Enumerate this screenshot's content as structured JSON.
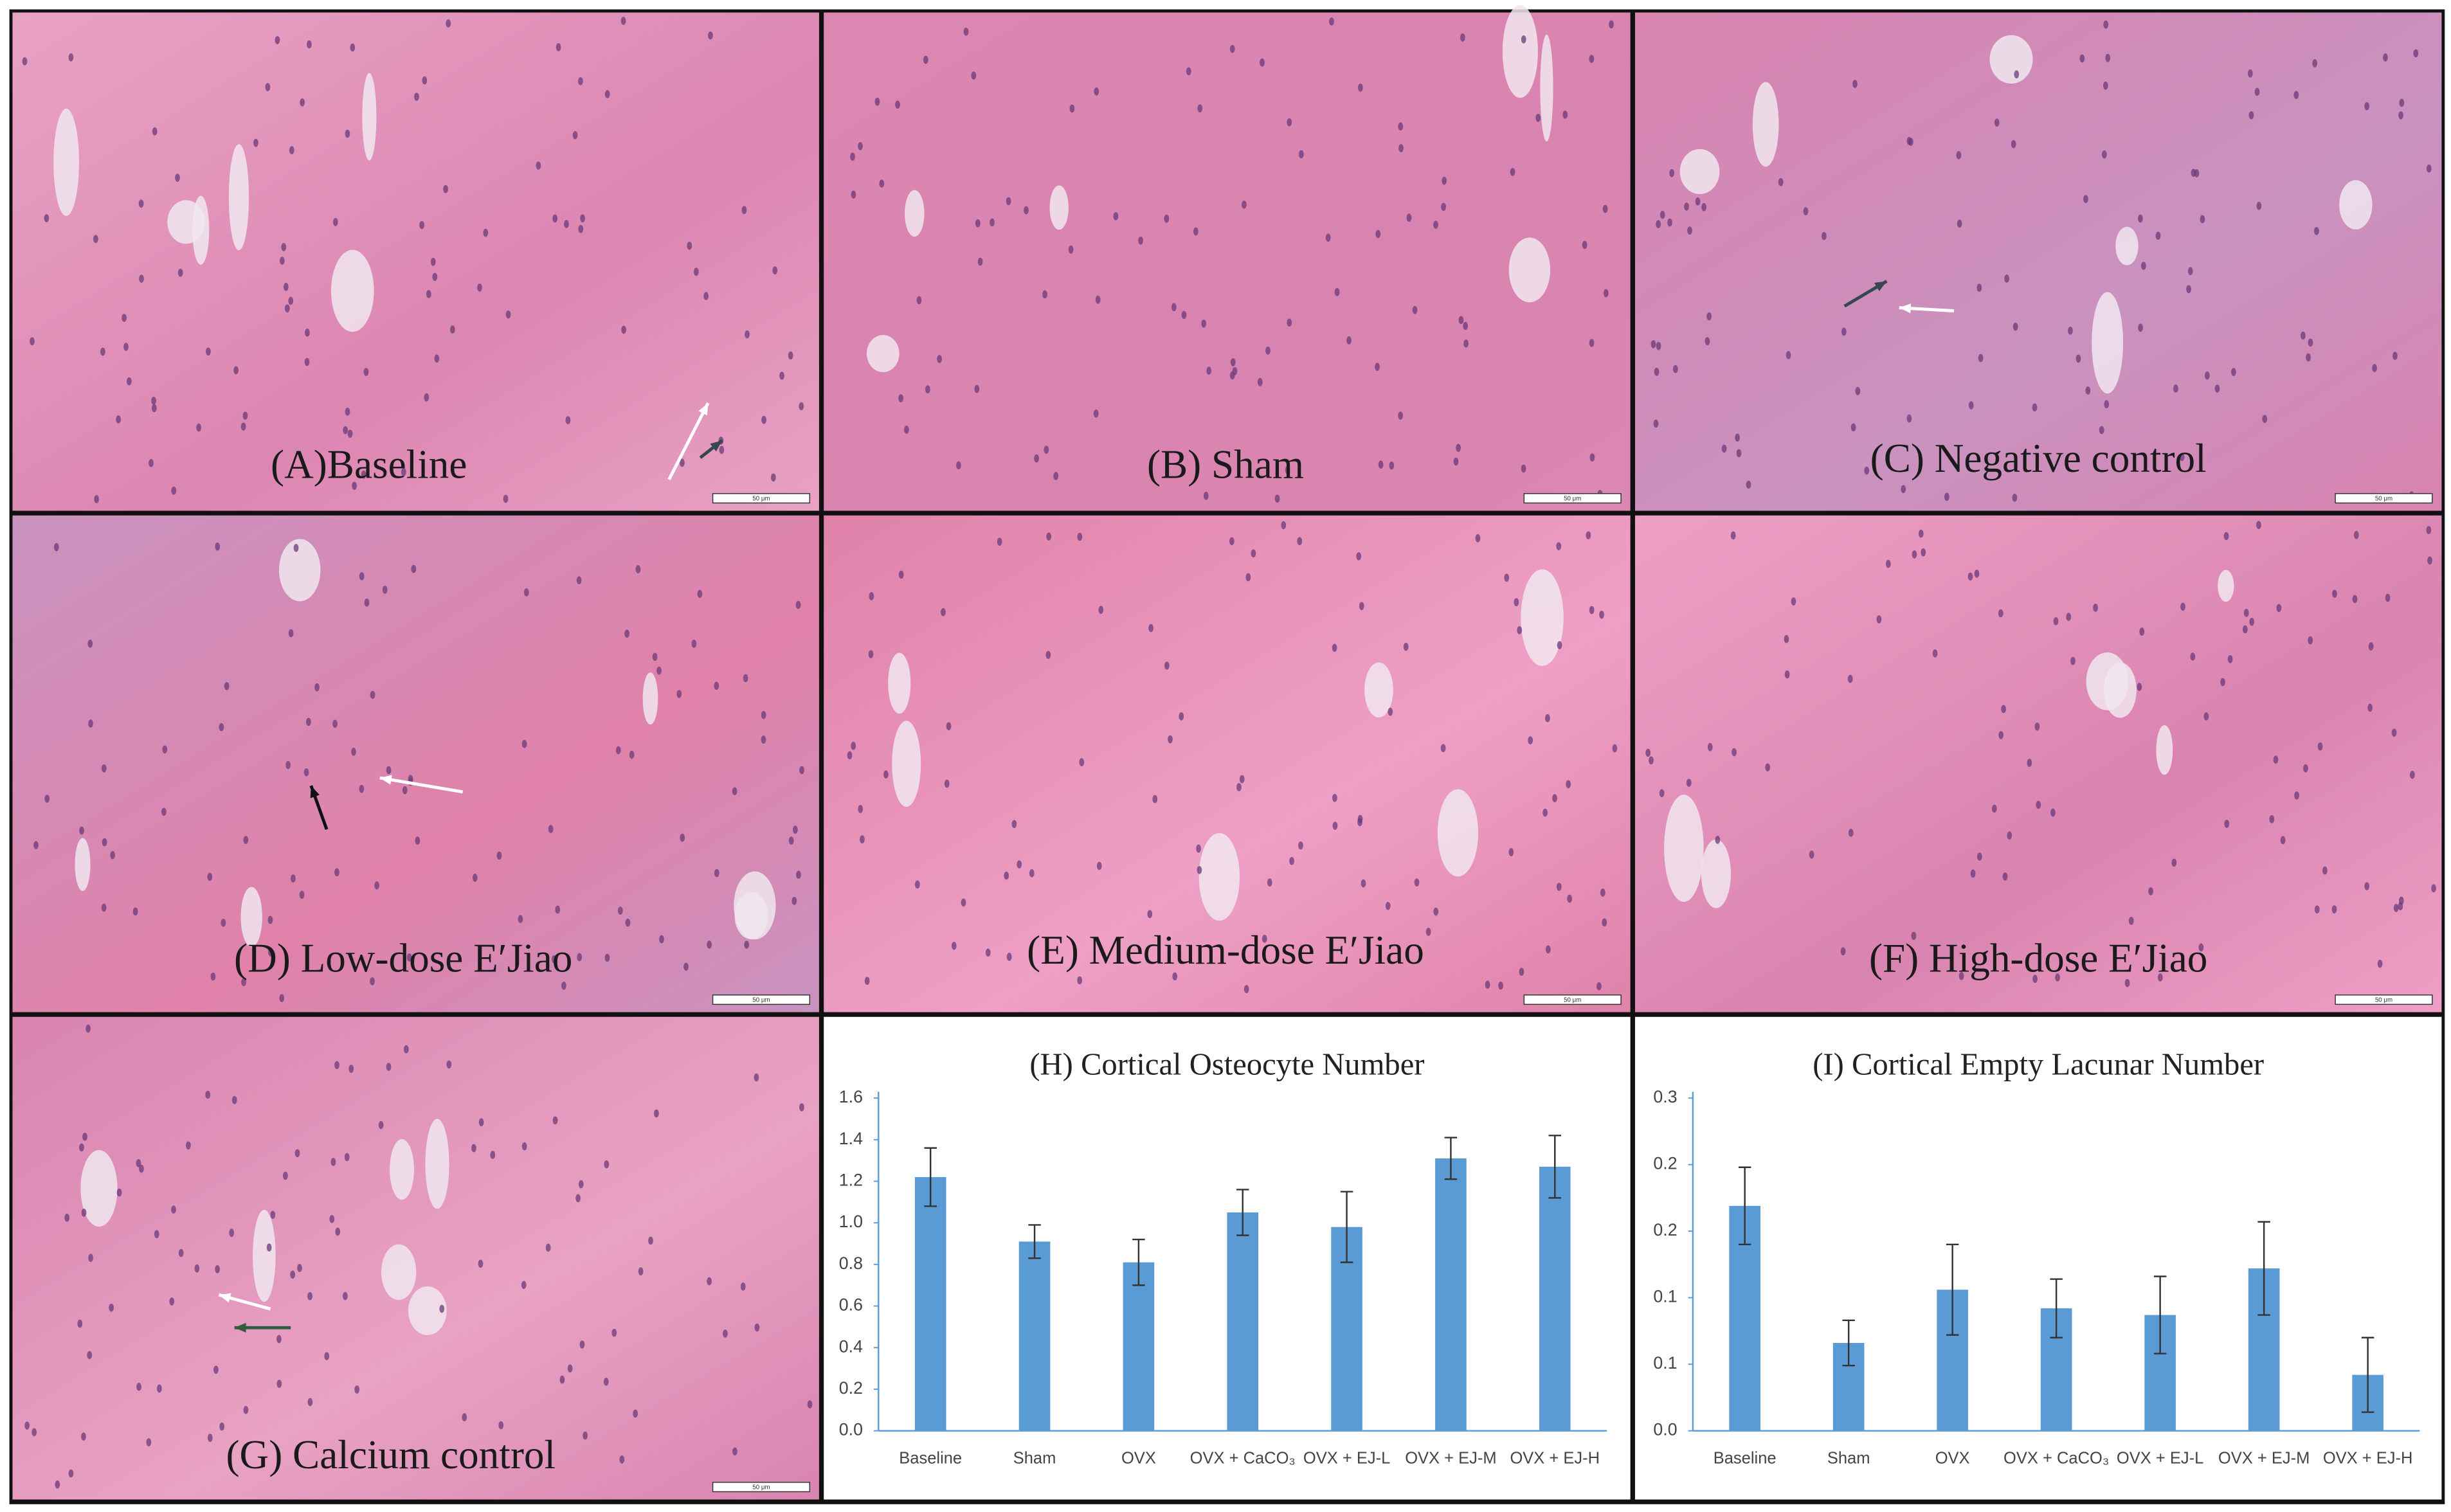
{
  "panels": [
    {
      "label": "(A)Baseline"
    },
    {
      "label": "(B) Sham"
    },
    {
      "label": "(C) Negative control"
    },
    {
      "label": "(D) Low-dose E′Jiao"
    },
    {
      "label": "(E) Medium-dose E′Jiao"
    },
    {
      "label": "(F) High-dose E′Jiao"
    },
    {
      "label": "(G) Calcium control"
    }
  ],
  "scale_bar": "50 μm",
  "chart_data": [
    {
      "type": "bar",
      "title": "(H) Cortical Osteocyte Number",
      "categories": [
        "Baseline",
        "Sham",
        "OVX",
        "OVX + CaCO₃",
        "OVX + EJ-L",
        "OVX + EJ-M",
        "OVX + EJ-H"
      ],
      "values": [
        1.22,
        0.91,
        0.81,
        1.05,
        0.98,
        1.31,
        1.27
      ],
      "errors": [
        0.14,
        0.08,
        0.11,
        0.11,
        0.17,
        0.1,
        0.15
      ],
      "color": "#5b9bd5",
      "ylim": [
        0,
        1.6
      ],
      "yticks": [
        {
          "value": 0,
          "label": "0.0"
        },
        0.2,
        0.4,
        0.6,
        0.8,
        {
          "value": 1,
          "label": "1.0"
        },
        1.2,
        1.4,
        1.6
      ]
    },
    {
      "type": "bar",
      "title": "(I) Cortical Empty Lacunar Number",
      "categories": [
        "Baseline",
        "Sham",
        "OVX",
        "OVX + CaCO₃",
        "OVX + EJ-L",
        "OVX + EJ-M",
        "OVX + EJ-H"
      ],
      "values": [
        0.169,
        0.066,
        0.106,
        0.092,
        0.087,
        0.122,
        0.042
      ],
      "errors": [
        0.029,
        0.017,
        0.034,
        0.022,
        0.029,
        0.035,
        0.028
      ],
      "color": "#5b9bd5",
      "ylim": [
        0,
        0.25
      ],
      "yticks": [
        {
          "value": 0,
          "label": "0.0"
        },
        {
          "value": 0.05,
          "label": "0.1"
        },
        {
          "value": 0.1,
          "label": "0.1"
        },
        {
          "value": 0.15,
          "label": "0.2"
        },
        {
          "value": 0.2,
          "label": "0.2"
        },
        {
          "value": 0.25,
          "label": "0.3"
        }
      ]
    }
  ]
}
